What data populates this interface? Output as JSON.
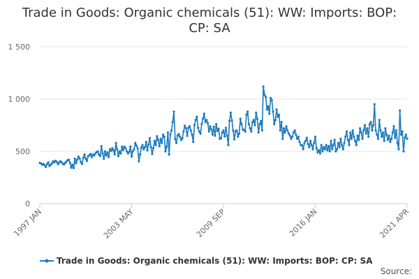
{
  "chart_data": {
    "type": "line",
    "title_lines": [
      "Trade in Goods: Organic chemicals (51): WW: Imports: BOP:",
      "CP: SA"
    ],
    "xlabel": "",
    "ylabel": "",
    "x_ticks": [
      "1997 JAN",
      "2003 MAY",
      "2009 SEP",
      "2016 JAN",
      "2021 APR"
    ],
    "x_range": [
      "1997 JAN",
      "2021 APR"
    ],
    "y_ticks": [
      "0",
      "500",
      "1 000",
      "1 500"
    ],
    "ylim": [
      0,
      1500
    ],
    "grid": "horizontal",
    "legend_position": "bottom",
    "series": [
      {
        "name": "Trade in Goods: Organic chemicals (51): WW: Imports: BOP: CP: SA",
        "color": "#1d7abd",
        "start": "1997 JAN",
        "frequency": "monthly",
        "values": [
          390,
          385,
          372,
          380,
          368,
          350,
          378,
          395,
          360,
          372,
          385,
          405,
          395,
          410,
          400,
          378,
          392,
          405,
          398,
          382,
          375,
          390,
          402,
          415,
          420,
          390,
          345,
          372,
          340,
          430,
          385,
          420,
          450,
          432,
          395,
          380,
          440,
          470,
          430,
          408,
          455,
          462,
          475,
          445,
          470,
          460,
          480,
          492,
          500,
          470,
          455,
          550,
          480,
          430,
          500,
          460,
          490,
          445,
          520,
          505,
          530,
          510,
          470,
          580,
          520,
          455,
          500,
          480,
          545,
          512,
          545,
          530,
          500,
          480,
          495,
          545,
          450,
          502,
          520,
          580,
          555,
          528,
          405,
          470,
          535,
          560,
          520,
          540,
          590,
          510,
          565,
          628,
          540,
          475,
          530,
          600,
          560,
          645,
          608,
          550,
          620,
          580,
          660,
          640,
          500,
          545,
          680,
          470,
          660,
          700,
          780,
          880,
          620,
          580,
          650,
          665,
          640,
          610,
          625,
          690,
          745,
          720,
          648,
          725,
          740,
          700,
          660,
          590,
          752,
          800,
          830,
          725,
          690,
          670,
          762,
          812,
          860,
          780,
          800,
          770,
          690,
          740,
          710,
          660,
          735,
          650,
          760,
          695,
          715,
          620,
          625,
          680,
          700,
          642,
          725,
          650,
          560,
          790,
          870,
          795,
          700,
          615,
          690,
          700,
          640,
          670,
          812,
          760,
          708,
          705,
          690,
          850,
          880,
          760,
          720,
          690,
          780,
          800,
          750,
          870,
          810,
          680,
          760,
          790,
          700,
          1120,
          1040,
          1020,
          900,
          930,
          860,
          1010,
          990,
          880,
          760,
          800,
          900,
          830,
          850,
          700,
          780,
          620,
          720,
          680,
          740,
          700,
          670,
          650,
          620,
          640,
          680,
          700,
          660,
          620,
          640,
          590,
          560,
          560,
          520,
          580,
          600,
          630,
          570,
          540,
          600,
          560,
          520,
          580,
          640,
          530,
          490,
          510,
          480,
          560,
          500,
          540,
          520,
          560,
          510,
          550,
          500,
          600,
          520,
          560,
          610,
          500,
          520,
          580,
          540,
          620,
          560,
          520,
          580,
          640,
          690,
          610,
          560,
          680,
          620,
          700,
          640,
          600,
          560,
          650,
          610,
          720,
          680,
          620,
          700,
          750,
          670,
          720,
          640,
          760,
          780,
          700,
          750,
          950,
          700,
          660,
          620,
          800,
          700,
          640,
          680,
          600,
          720,
          660,
          610,
          650,
          590,
          620,
          680,
          740,
          630,
          700,
          580,
          520,
          890,
          660,
          690,
          500,
          630,
          660,
          620
        ]
      }
    ]
  },
  "legend": {
    "label": "Trade in Goods: Organic chemicals (51): WW: Imports: BOP: CP: SA"
  },
  "footer": {
    "source_label": "Source:"
  }
}
